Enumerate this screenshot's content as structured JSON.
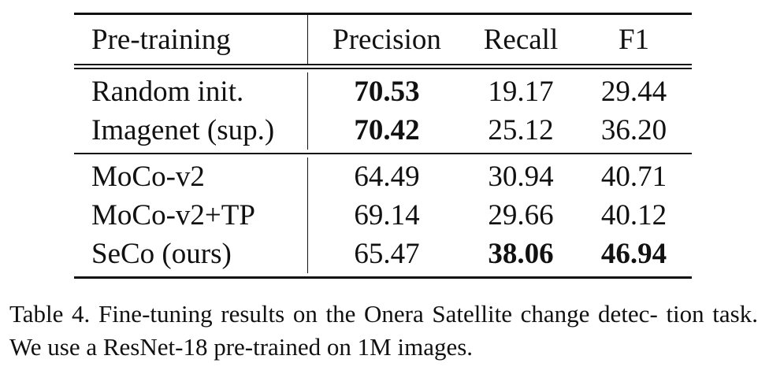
{
  "table": {
    "headers": [
      "Pre-training",
      "Precision",
      "Recall",
      "F1"
    ],
    "groups": [
      [
        {
          "name": "Random init.",
          "precision": "70.53",
          "recall": "19.17",
          "f1": "29.44",
          "bold": [
            "precision"
          ]
        },
        {
          "name": "Imagenet (sup.)",
          "precision": "70.42",
          "recall": "25.12",
          "f1": "36.20",
          "bold": [
            "precision"
          ]
        }
      ],
      [
        {
          "name": "MoCo-v2",
          "precision": "64.49",
          "recall": "30.94",
          "f1": "40.71",
          "bold": []
        },
        {
          "name": "MoCo-v2+TP",
          "precision": "69.14",
          "recall": "29.66",
          "f1": "40.12",
          "bold": []
        },
        {
          "name": "SeCo (ours)",
          "precision": "65.47",
          "recall": "38.06",
          "f1": "46.94",
          "bold": [
            "recall",
            "f1"
          ]
        }
      ]
    ]
  },
  "caption": {
    "line1": "Table 4. Fine-tuning results on the Onera Satellite change detec-",
    "line2": "tion task. We use a ResNet-18 pre-trained on 1M images."
  }
}
